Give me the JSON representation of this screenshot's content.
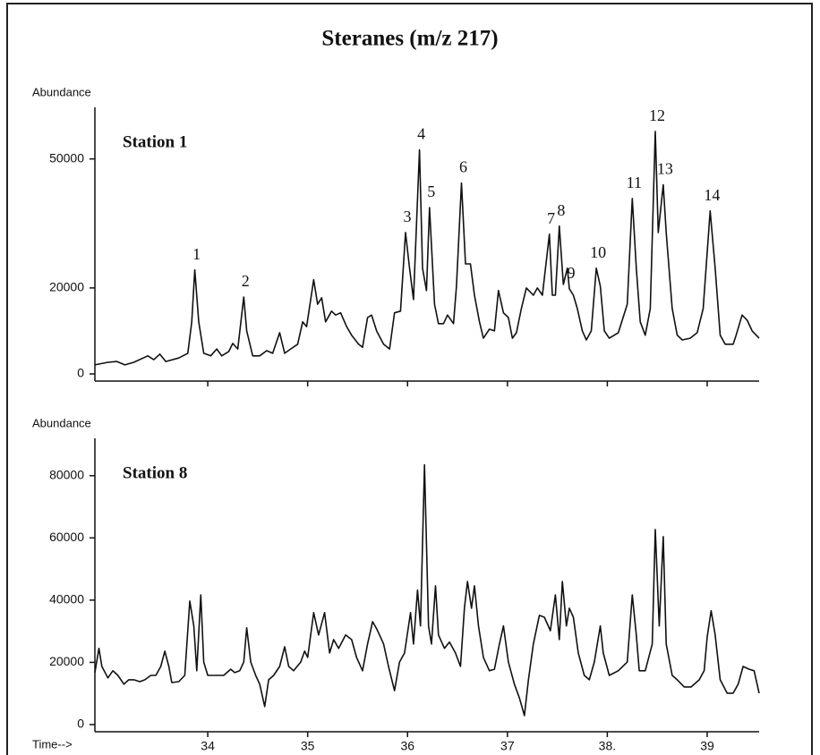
{
  "chart_data": [
    {
      "type": "line",
      "title": "Steranes (m/z 217)",
      "ylabel": "Abundance",
      "label": "Station 1",
      "color": "#111111",
      "xlim": [
        32.87,
        39.52
      ],
      "xticks": [
        34,
        35,
        36,
        37,
        38,
        39
      ],
      "xtick_labels": false,
      "ylim": [
        0,
        62000
      ],
      "yticks": [
        0,
        20000,
        50000
      ],
      "x": [
        32.87,
        33.0,
        33.09,
        33.17,
        33.26,
        33.4,
        33.46,
        33.52,
        33.58,
        33.71,
        33.8,
        33.84,
        33.87,
        33.91,
        33.96,
        34.03,
        34.09,
        34.14,
        34.21,
        34.25,
        34.3,
        34.36,
        34.39,
        34.45,
        34.52,
        34.59,
        34.65,
        34.72,
        34.77,
        34.83,
        34.9,
        34.95,
        34.99,
        35.06,
        35.1,
        35.14,
        35.18,
        35.24,
        35.28,
        35.33,
        35.39,
        35.44,
        35.51,
        35.55,
        35.6,
        35.64,
        35.69,
        35.76,
        35.82,
        35.87,
        35.93,
        35.98,
        36.02,
        36.06,
        36.12,
        36.15,
        36.19,
        36.22,
        36.27,
        36.31,
        36.36,
        36.4,
        36.46,
        36.49,
        36.54,
        36.58,
        36.63,
        36.67,
        36.72,
        36.76,
        36.82,
        36.87,
        36.91,
        36.96,
        37.01,
        37.05,
        37.09,
        37.14,
        37.19,
        37.26,
        37.3,
        37.35,
        37.42,
        37.45,
        37.48,
        37.52,
        37.56,
        37.6,
        37.62,
        37.66,
        37.7,
        37.75,
        37.79,
        37.84,
        37.89,
        37.93,
        37.97,
        38.02,
        38.11,
        38.2,
        38.25,
        38.29,
        38.33,
        38.38,
        38.43,
        38.48,
        38.51,
        38.56,
        38.59,
        38.65,
        38.7,
        38.75,
        38.83,
        38.9,
        38.96,
        39.03,
        39.08,
        39.13,
        39.18,
        39.26,
        39.29,
        39.35,
        39.4,
        39.45,
        39.52
      ],
      "values": [
        2100,
        2700,
        2900,
        2100,
        2700,
        4200,
        3300,
        4600,
        2900,
        3700,
        4800,
        12100,
        24200,
        12100,
        4800,
        4200,
        5800,
        4200,
        5200,
        7100,
        5800,
        17900,
        10000,
        4200,
        4200,
        5400,
        4800,
        9600,
        4800,
        5800,
        6900,
        12100,
        11000,
        21900,
        16200,
        17700,
        12100,
        14600,
        13700,
        14200,
        11000,
        9000,
        6900,
        6200,
        13100,
        13700,
        10000,
        6900,
        5800,
        14200,
        14600,
        32900,
        24600,
        17300,
        52100,
        24600,
        19400,
        38700,
        16200,
        11700,
        11700,
        13700,
        11700,
        20400,
        44400,
        25600,
        25600,
        18300,
        12100,
        8300,
        10400,
        10000,
        19400,
        14200,
        13100,
        8300,
        9600,
        15200,
        20000,
        18300,
        20000,
        18300,
        32500,
        18300,
        18300,
        34400,
        20800,
        24600,
        19800,
        18300,
        15200,
        10000,
        7900,
        10000,
        24600,
        20400,
        10000,
        8300,
        9600,
        16200,
        40800,
        24600,
        12100,
        9000,
        15200,
        56400,
        32900,
        44000,
        32900,
        15200,
        9000,
        7900,
        8300,
        9600,
        15200,
        37900,
        24600,
        9000,
        6900,
        6900,
        9000,
        13700,
        12500,
        10000,
        8300
      ],
      "annotations": [
        {
          "text": "1",
          "x": 33.87
        },
        {
          "text": "2",
          "x": 34.36
        },
        {
          "text": "3",
          "x": 35.98
        },
        {
          "text": "4",
          "x": 36.12
        },
        {
          "text": "5",
          "x": 36.22
        },
        {
          "text": "6",
          "x": 36.54
        },
        {
          "text": "7",
          "x": 37.42
        },
        {
          "text": "8",
          "x": 37.52
        },
        {
          "text": "9",
          "x": 37.62
        },
        {
          "text": "10",
          "x": 37.89
        },
        {
          "text": "11",
          "x": 38.25
        },
        {
          "text": "12",
          "x": 38.48
        },
        {
          "text": "13",
          "x": 38.56
        },
        {
          "text": "14",
          "x": 39.03
        }
      ]
    },
    {
      "type": "line",
      "ylabel": "Abundance",
      "label": "Station 8",
      "xlabel": "Time-->",
      "color": "#111111",
      "xlim": [
        32.87,
        39.52
      ],
      "xticks": [
        34,
        35,
        36,
        37,
        {
          "value": 38,
          "label": "38."
        },
        39
      ],
      "xtick_labels": true,
      "ylim": [
        0,
        92000
      ],
      "yticks": [
        0,
        20000,
        40000,
        60000,
        80000
      ],
      "x": [
        32.87,
        32.91,
        32.94,
        33.0,
        33.05,
        33.1,
        33.16,
        33.21,
        33.26,
        33.32,
        33.37,
        33.43,
        33.48,
        33.53,
        33.57,
        33.61,
        33.64,
        33.71,
        33.77,
        33.82,
        33.86,
        33.89,
        33.93,
        33.96,
        34.0,
        34.07,
        34.16,
        34.23,
        34.27,
        34.32,
        34.36,
        34.39,
        34.43,
        34.48,
        34.52,
        34.57,
        34.61,
        34.66,
        34.72,
        34.77,
        34.81,
        34.86,
        34.93,
        34.97,
        35.0,
        35.06,
        35.11,
        35.17,
        35.22,
        35.26,
        35.31,
        35.38,
        35.44,
        35.49,
        35.55,
        35.6,
        35.65,
        35.69,
        35.72,
        35.76,
        35.81,
        35.87,
        35.92,
        35.97,
        36.03,
        36.06,
        36.1,
        36.13,
        36.17,
        36.21,
        36.24,
        36.28,
        36.31,
        36.37,
        36.42,
        36.48,
        36.53,
        36.57,
        36.6,
        36.64,
        36.67,
        36.71,
        36.76,
        36.82,
        36.87,
        36.92,
        36.96,
        37.01,
        37.07,
        37.12,
        37.17,
        37.21,
        37.26,
        37.32,
        37.37,
        37.43,
        37.48,
        37.52,
        37.55,
        37.59,
        37.62,
        37.66,
        37.71,
        37.77,
        37.82,
        37.87,
        37.93,
        37.96,
        38.02,
        38.11,
        38.2,
        38.25,
        38.29,
        38.32,
        38.38,
        38.45,
        38.48,
        38.52,
        38.56,
        38.59,
        38.65,
        38.7,
        38.77,
        38.84,
        38.92,
        38.97,
        39.0,
        39.04,
        39.08,
        39.13,
        39.2,
        39.26,
        39.31,
        39.36,
        39.42,
        39.47,
        39.52
      ],
      "values": [
        16700,
        24500,
        18700,
        15000,
        17300,
        15800,
        13000,
        14400,
        14400,
        13800,
        14400,
        15800,
        15800,
        18700,
        23600,
        18700,
        13500,
        13800,
        15800,
        39700,
        31700,
        17300,
        41700,
        20100,
        15800,
        15800,
        15800,
        17800,
        16700,
        17300,
        20100,
        31100,
        20100,
        15800,
        13000,
        5800,
        14400,
        15800,
        18700,
        25000,
        18700,
        17300,
        20100,
        23600,
        21600,
        36000,
        28800,
        36000,
        23000,
        27300,
        24500,
        28800,
        27300,
        21600,
        17300,
        25900,
        33100,
        30800,
        28800,
        25900,
        18700,
        10900,
        20100,
        23000,
        36000,
        25900,
        43200,
        31700,
        83500,
        31700,
        25900,
        44600,
        28800,
        24500,
        26500,
        23000,
        18700,
        37400,
        46000,
        37400,
        44600,
        31700,
        21600,
        17300,
        17800,
        25900,
        31700,
        20100,
        13000,
        8600,
        2900,
        14400,
        25900,
        35100,
        34500,
        30200,
        41700,
        27300,
        46000,
        31700,
        37400,
        34500,
        23000,
        15800,
        14400,
        20100,
        31700,
        23000,
        15800,
        17300,
        20100,
        41700,
        28800,
        17300,
        17300,
        25900,
        62700,
        31700,
        60400,
        25900,
        15800,
        14400,
        12100,
        12100,
        14400,
        17300,
        28200,
        36600,
        28800,
        14400,
        10100,
        10100,
        13000,
        18700,
        17800,
        17300,
        10100
      ]
    }
  ]
}
